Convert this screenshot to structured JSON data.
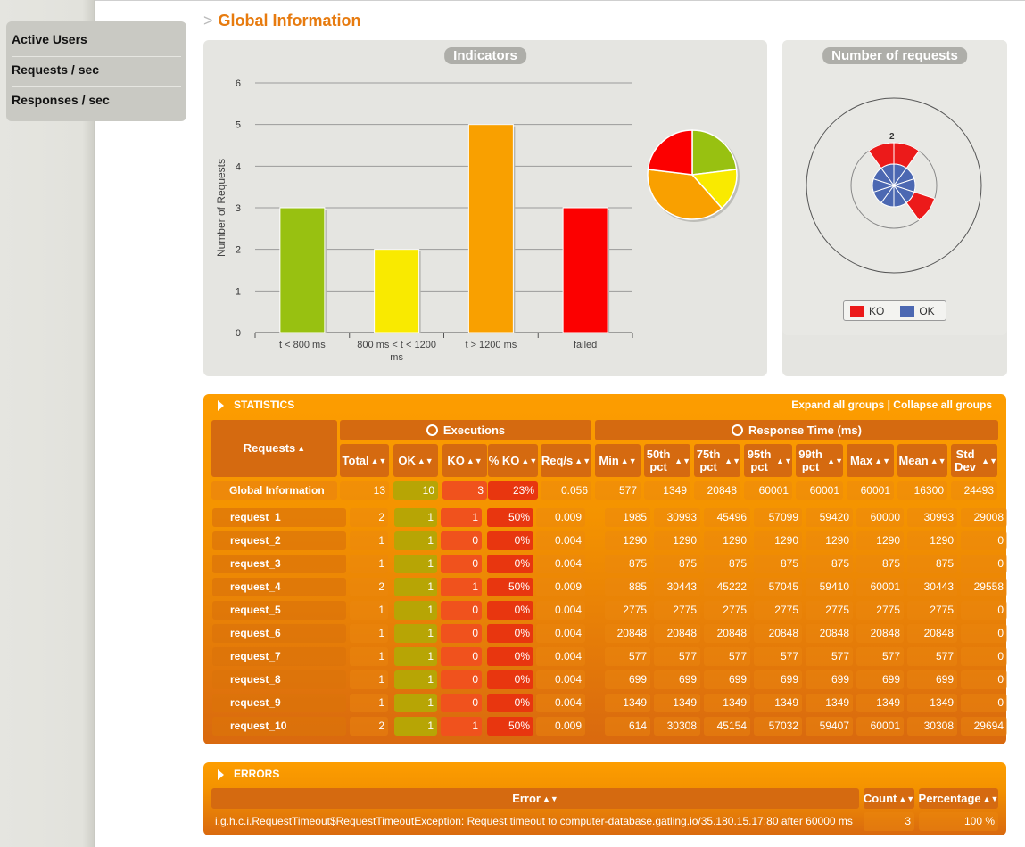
{
  "menu": [
    "Active Users",
    "Requests / sec",
    "Responses / sec"
  ],
  "page": {
    "arrow": ">",
    "title": "Global Information"
  },
  "indicators": {
    "title": "Indicators",
    "chart_data": {
      "type": "bar",
      "ylabel": "Number of Requests",
      "categories": [
        "t < 800 ms",
        "800 ms < t < 1200 ms",
        "t > 1200 ms",
        "failed"
      ],
      "values": [
        3,
        2,
        5,
        3
      ],
      "colors": [
        "#98c111",
        "#f9ea00",
        "#f9a000",
        "#fc0000"
      ],
      "ylim": [
        0,
        6
      ],
      "yticks": [
        "0",
        "1",
        "2",
        "3",
        "4",
        "5",
        "6"
      ],
      "grid": true
    },
    "pie": {
      "type": "pie",
      "values": [
        3,
        2,
        5,
        3
      ],
      "colors": [
        "#98c111",
        "#f9ea00",
        "#f9a000",
        "#fc0000"
      ]
    }
  },
  "requests_chart": {
    "title": "Number of requests",
    "chart_data": {
      "type": "polar",
      "series": [
        {
          "name": "KO",
          "color": "#ec1a1a"
        },
        {
          "name": "OK",
          "color": "#4c68b2"
        }
      ],
      "ok_values": [
        1,
        1,
        1,
        1,
        1,
        1,
        1,
        1,
        1,
        1
      ],
      "ko_values": [
        1,
        0,
        0,
        1,
        0,
        0,
        0,
        0,
        0,
        1
      ],
      "scale_label": "2"
    },
    "legend": {
      "ko": "KO",
      "ok": "OK"
    }
  },
  "statistics": {
    "title": "STATISTICS",
    "expand": "Expand all groups",
    "sep": " | ",
    "collapse": "Collapse all groups",
    "headers": {
      "requests": "Requests",
      "executions": "Executions",
      "response_time": "Response Time (ms)",
      "cols": [
        "Total",
        "OK",
        "KO",
        "% KO",
        "Req/s",
        "Min",
        "50th pct",
        "75th pct",
        "95th pct",
        "99th pct",
        "Max",
        "Mean",
        "Std Dev"
      ]
    },
    "global": [
      "Global Information",
      "13",
      "10",
      "3",
      "23%",
      "0.056",
      "577",
      "1349",
      "20848",
      "60001",
      "60001",
      "60001",
      "16300",
      "24493"
    ],
    "rows": [
      [
        "request_1",
        "2",
        "1",
        "1",
        "50%",
        "0.009",
        "1985",
        "30993",
        "45496",
        "57099",
        "59420",
        "60000",
        "30993",
        "29008"
      ],
      [
        "request_2",
        "1",
        "1",
        "0",
        "0%",
        "0.004",
        "1290",
        "1290",
        "1290",
        "1290",
        "1290",
        "1290",
        "1290",
        "0"
      ],
      [
        "request_3",
        "1",
        "1",
        "0",
        "0%",
        "0.004",
        "875",
        "875",
        "875",
        "875",
        "875",
        "875",
        "875",
        "0"
      ],
      [
        "request_4",
        "2",
        "1",
        "1",
        "50%",
        "0.009",
        "885",
        "30443",
        "45222",
        "57045",
        "59410",
        "60001",
        "30443",
        "29558"
      ],
      [
        "request_5",
        "1",
        "1",
        "0",
        "0%",
        "0.004",
        "2775",
        "2775",
        "2775",
        "2775",
        "2775",
        "2775",
        "2775",
        "0"
      ],
      [
        "request_6",
        "1",
        "1",
        "0",
        "0%",
        "0.004",
        "20848",
        "20848",
        "20848",
        "20848",
        "20848",
        "20848",
        "20848",
        "0"
      ],
      [
        "request_7",
        "1",
        "1",
        "0",
        "0%",
        "0.004",
        "577",
        "577",
        "577",
        "577",
        "577",
        "577",
        "577",
        "0"
      ],
      [
        "request_8",
        "1",
        "1",
        "0",
        "0%",
        "0.004",
        "699",
        "699",
        "699",
        "699",
        "699",
        "699",
        "699",
        "0"
      ],
      [
        "request_9",
        "1",
        "1",
        "0",
        "0%",
        "0.004",
        "1349",
        "1349",
        "1349",
        "1349",
        "1349",
        "1349",
        "1349",
        "0"
      ],
      [
        "request_10",
        "2",
        "1",
        "1",
        "50%",
        "0.009",
        "614",
        "30308",
        "45154",
        "57032",
        "59407",
        "60001",
        "30308",
        "29694"
      ]
    ]
  },
  "errors": {
    "title": "ERRORS",
    "headers": [
      "Error",
      "Count",
      "Percentage"
    ],
    "rows": [
      [
        "i.g.h.c.i.RequestTimeout$RequestTimeoutException: Request timeout to computer-database.gatling.io/35.180.15.17:80 after 60000 ms",
        "3",
        "100 %"
      ]
    ]
  },
  "icons": {
    "sort": "sort-icon",
    "sort_up": "sort-ascending-icon",
    "executions": "refresh-icon",
    "response_time": "clock-icon",
    "expand": "triangle-right-icon"
  }
}
